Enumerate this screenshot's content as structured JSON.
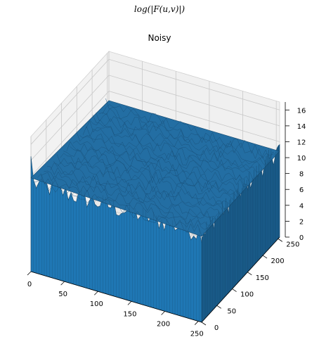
{
  "figure": {
    "suptitle": "log(|F(u,v)|)",
    "title": "Noisy"
  },
  "chart_data": {
    "type": "surface3d",
    "title": "Noisy",
    "suptitle": "log(|F(u,v)|)",
    "x_range": [
      0,
      255
    ],
    "y_range": [
      0,
      255
    ],
    "z_range": [
      0,
      17
    ],
    "x_ticks": [
      0,
      50,
      100,
      150,
      200,
      250
    ],
    "y_ticks": [
      0,
      50,
      100,
      150,
      200,
      250
    ],
    "z_ticks": [
      0,
      2,
      4,
      6,
      8,
      10,
      12,
      14,
      16
    ],
    "surface_typical_range": [
      8.5,
      12.5
    ],
    "corner_peak_value": 14.5,
    "surface_color": "#1f77b4",
    "edge_color": "#16496e",
    "pane_color": "#f0f0f0",
    "grid": true
  }
}
